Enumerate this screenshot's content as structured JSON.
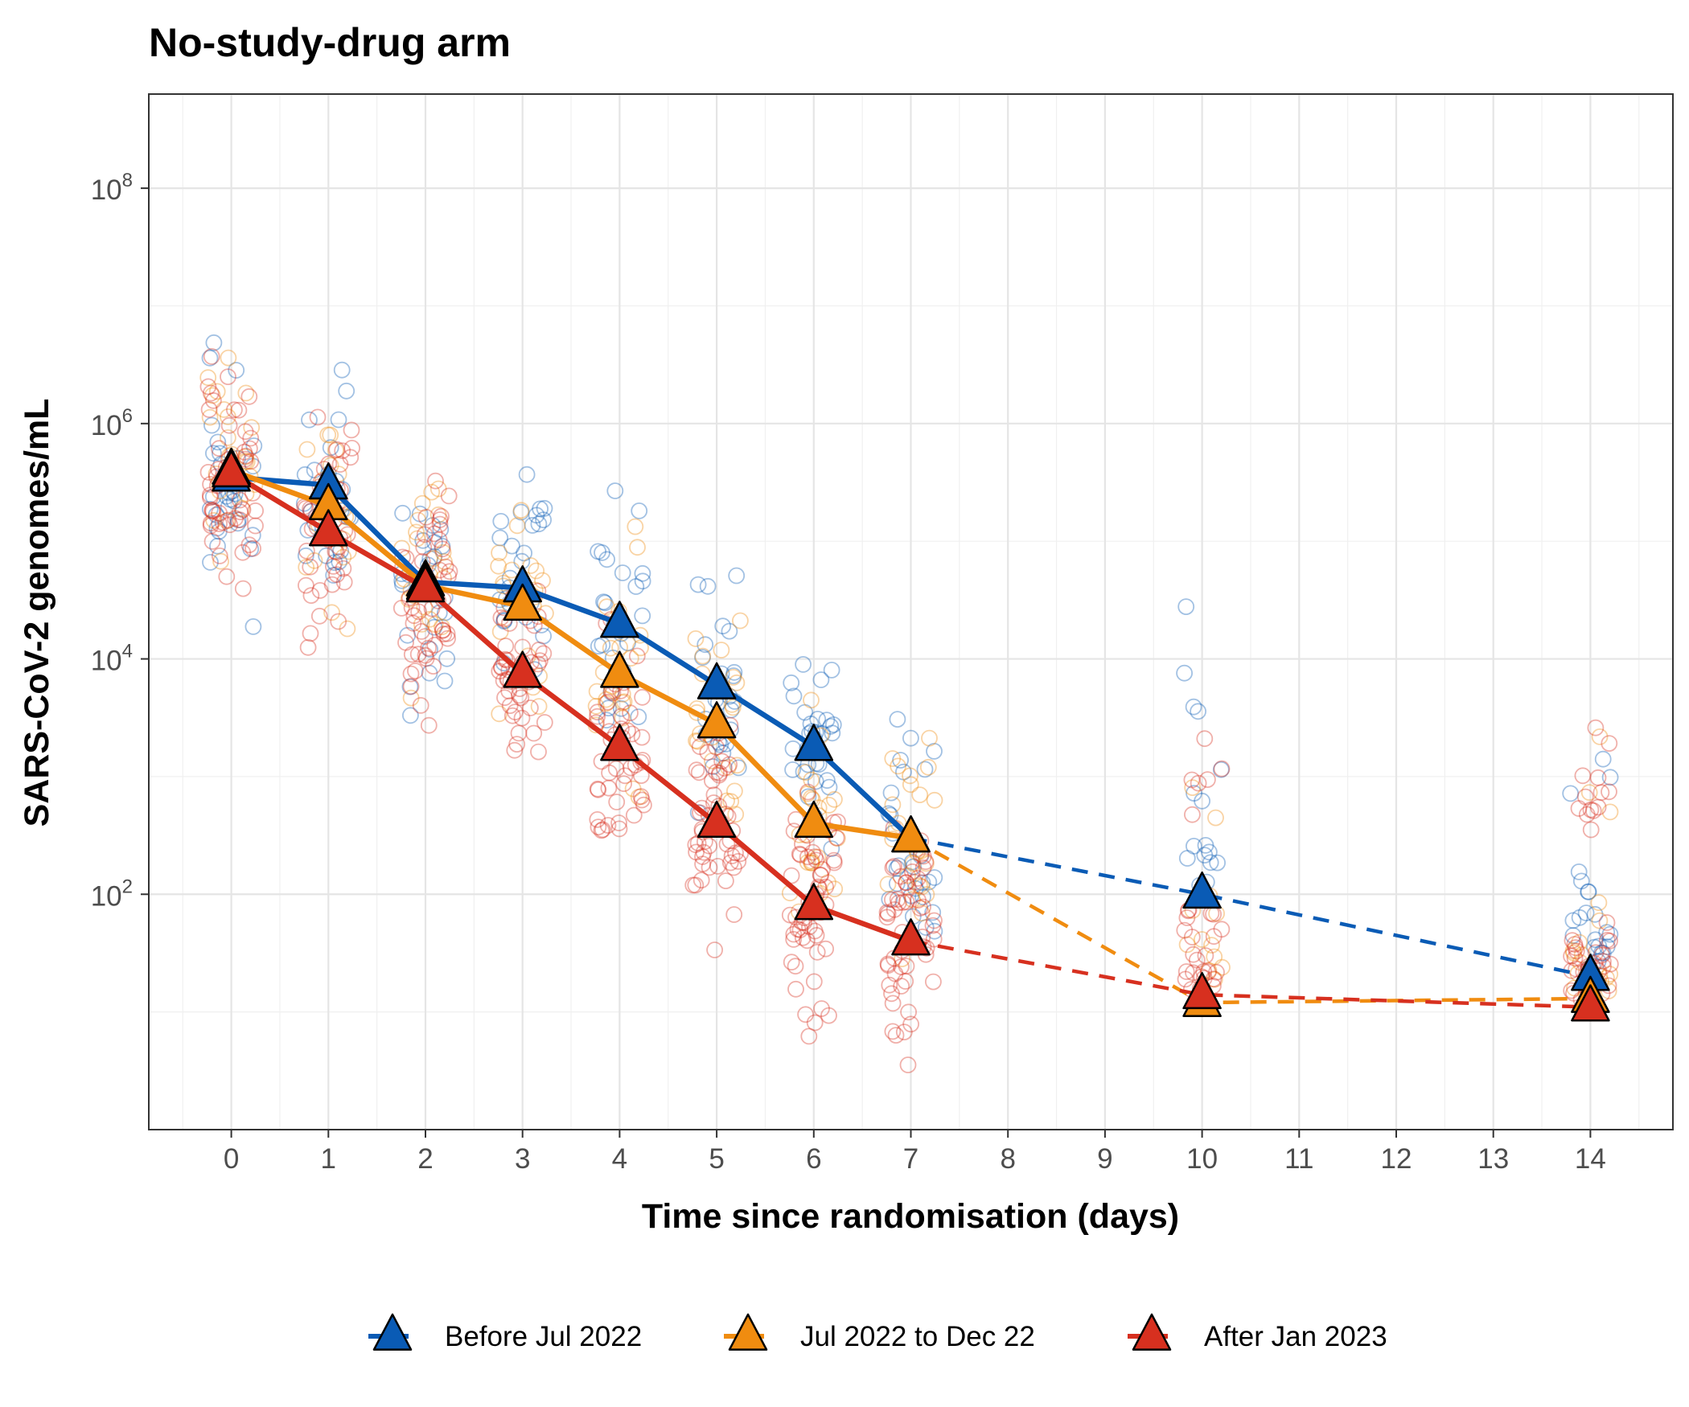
{
  "chart_data": {
    "type": "line",
    "title": "No-study-drug arm",
    "xlabel": "Time since randomisation (days)",
    "ylabel": "SARS-CoV-2 genomes/mL",
    "y_scale": "log10",
    "xlim": [
      -0.85,
      14.85
    ],
    "ylim_log10": [
      0.0,
      8.8
    ],
    "x_ticks": [
      0,
      1,
      2,
      3,
      4,
      5,
      6,
      7,
      8,
      9,
      10,
      11,
      12,
      13,
      14
    ],
    "x_tick_labels": [
      "0",
      "1",
      "2",
      "3",
      "4",
      "5",
      "6",
      "7",
      "8",
      "9",
      "10",
      "11",
      "12",
      "13",
      "14"
    ],
    "y_ticks_log10": [
      2,
      4,
      6,
      8
    ],
    "y_tick_labels": [
      "10",
      "10",
      "10",
      "10"
    ],
    "y_tick_exponents": [
      "2",
      "4",
      "6",
      "8"
    ],
    "grid": true,
    "legend_position": "bottom",
    "series": [
      {
        "name": "Before Jul 2022",
        "color": "#0a5bb5",
        "x_solid": [
          0,
          1,
          2,
          3,
          4,
          5,
          6,
          7
        ],
        "y_solid": [
          350000,
          300000,
          45000,
          40000,
          20000,
          6000,
          1800,
          300
        ],
        "x_dashed": [
          7,
          10,
          14
        ],
        "y_dashed": [
          300,
          100,
          20
        ]
      },
      {
        "name": "Jul 2022 to Dec 22",
        "color": "#f08c10",
        "x_solid": [
          0,
          1,
          2,
          3,
          4,
          5,
          6,
          7
        ],
        "y_solid": [
          400000,
          200000,
          42000,
          28000,
          7500,
          2800,
          400,
          300
        ],
        "x_dashed": [
          7,
          10,
          14
        ],
        "y_dashed": [
          300,
          12,
          13
        ]
      },
      {
        "name": "After Jan 2023",
        "color": "#d7301f",
        "x_solid": [
          0,
          1,
          2,
          3,
          4,
          5,
          6,
          7
        ],
        "y_solid": [
          380000,
          120000,
          40000,
          7500,
          1800,
          400,
          80,
          40
        ],
        "x_dashed": [
          7,
          10,
          14
        ],
        "y_dashed": [
          40,
          14,
          11
        ]
      }
    ],
    "scatter_note": "Individual sample measurements plotted as jittered open circles at each day, colored by period"
  }
}
